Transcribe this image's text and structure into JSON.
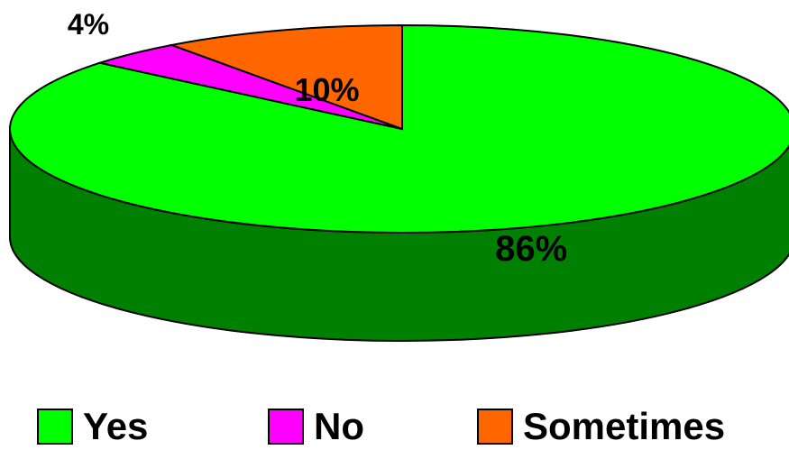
{
  "chart_data": {
    "type": "pie",
    "title": "",
    "series": [
      {
        "label": "Yes",
        "value": 86,
        "display": "86%",
        "color": "#00ff00",
        "side_color": "#008000"
      },
      {
        "label": "No",
        "value": 4,
        "display": "4%",
        "color": "#ff00ff",
        "side_color": "#990099"
      },
      {
        "label": "Sometimes",
        "value": 10,
        "display": "10%",
        "color": "#ff6600",
        "side_color": "#993300"
      }
    ],
    "legend_position": "bottom",
    "style": "3d-pie",
    "grid": false
  }
}
